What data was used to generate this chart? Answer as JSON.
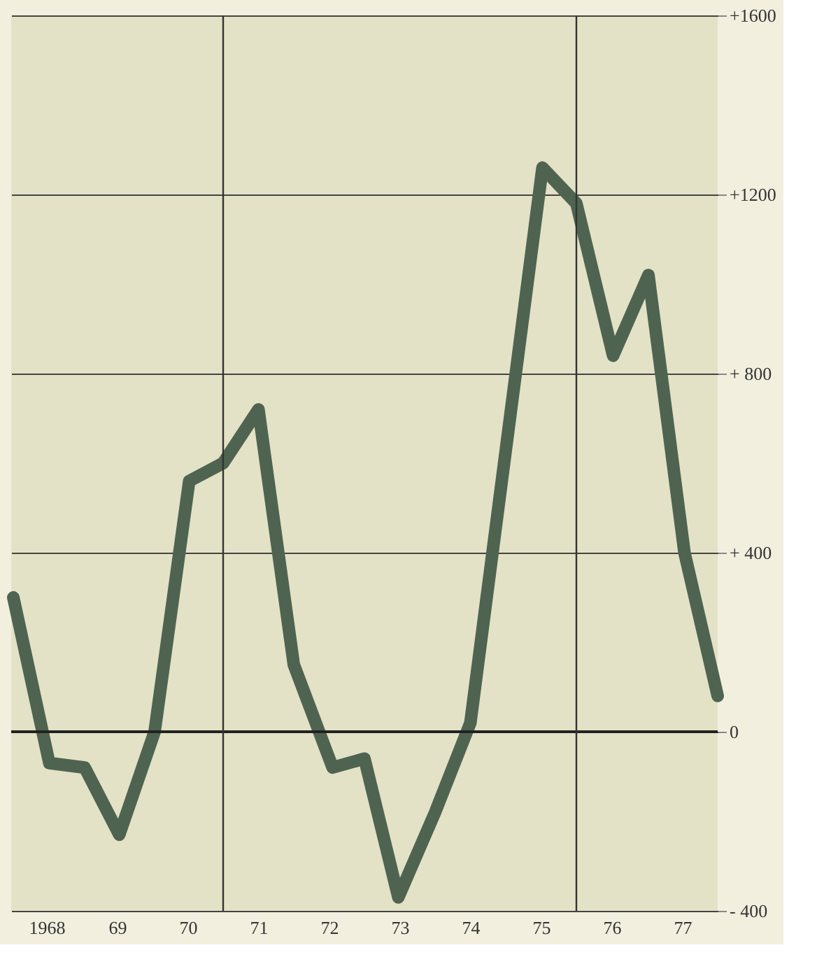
{
  "chart_data": {
    "type": "line",
    "x": [
      1967.53,
      1968.04,
      1968.54,
      1969.03,
      1969.53,
      1970.02,
      1970.5,
      1971.0,
      1971.5,
      1972.05,
      1972.5,
      1972.98,
      1973.5,
      1974.0,
      1975.02,
      1975.5,
      1976.02,
      1976.52,
      1977.03,
      1977.5
    ],
    "series": [
      {
        "color": "#4f6450",
        "values": [
          300,
          -70,
          -80,
          -230,
          0,
          560,
          600,
          720,
          150,
          -80,
          -60,
          -370,
          -180,
          20,
          1260,
          1180,
          840,
          1020,
          400,
          80
        ]
      }
    ],
    "xlim": [
      1967.5,
      1977.5
    ],
    "xticks": [
      {
        "value": 1968,
        "label": "1968"
      },
      {
        "value": 1969,
        "label": "69"
      },
      {
        "value": 1970,
        "label": "70"
      },
      {
        "value": 1971,
        "label": "71"
      },
      {
        "value": 1972,
        "label": "72"
      },
      {
        "value": 1973,
        "label": "73"
      },
      {
        "value": 1974,
        "label": "74"
      },
      {
        "value": 1975,
        "label": "75"
      },
      {
        "value": 1976,
        "label": "76"
      },
      {
        "value": 1977,
        "label": "77"
      }
    ],
    "ylim": [
      -400,
      1600
    ],
    "yticks": [
      {
        "value": -400,
        "label": "- 400"
      },
      0,
      {
        "value": 400,
        "label": "+ 400"
      },
      {
        "value": 800,
        "label": "+ 800"
      },
      {
        "value": 1200,
        "label": "+1200"
      },
      {
        "value": 1600,
        "label": "+1600"
      }
    ],
    "ref_lines": [
      {
        "axis": "x",
        "value": 1970.5,
        "label": null,
        "color": "#333333"
      },
      {
        "axis": "x",
        "value": 1975.5,
        "label": null,
        "color": "#333333"
      },
      {
        "axis": "y",
        "value": 0,
        "label": null,
        "color": "#222222"
      }
    ],
    "grid": "y",
    "line_style": "solid"
  }
}
